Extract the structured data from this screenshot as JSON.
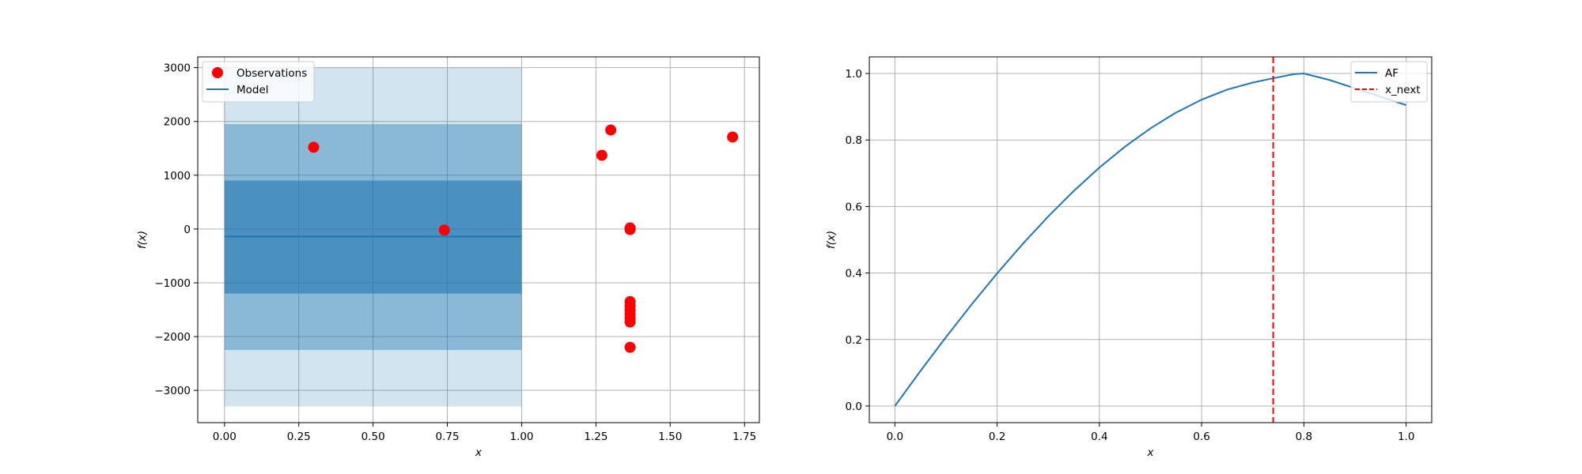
{
  "chart_data": [
    {
      "type": "scatter",
      "xlabel": "x",
      "ylabel": "f(x)",
      "xlim": [
        -0.09,
        1.8
      ],
      "ylim": [
        -3600,
        3200
      ],
      "xticks": [
        0.0,
        0.25,
        0.5,
        0.75,
        1.0,
        1.25,
        1.5,
        1.75
      ],
      "xtick_labels": [
        "0.00",
        "0.25",
        "0.50",
        "0.75",
        "1.00",
        "1.25",
        "1.50",
        "1.75"
      ],
      "yticks": [
        -3000,
        -2000,
        -1000,
        0,
        1000,
        2000,
        3000
      ],
      "ytick_labels": [
        "−3000",
        "−2000",
        "−1000",
        "0",
        "1000",
        "2000",
        "3000"
      ],
      "grid": true,
      "legend": "top-left",
      "bands": [
        {
          "x": [
            0.0,
            1.0
          ],
          "y": [
            -3300,
            3000
          ],
          "color": "#1f77b4",
          "opacity": 0.2
        },
        {
          "x": [
            0.0,
            1.0
          ],
          "y": [
            -2250,
            1950
          ],
          "color": "#1f77b4",
          "opacity": 0.4
        },
        {
          "x": [
            0.0,
            1.0
          ],
          "y": [
            -1200,
            900
          ],
          "color": "#1f77b4",
          "opacity": 0.6
        }
      ],
      "series": [
        {
          "name": "Observations",
          "kind": "scatter",
          "color": "#ff0000",
          "points": [
            [
              0.3,
              1520
            ],
            [
              0.74,
              -20
            ],
            [
              1.27,
              1370
            ],
            [
              1.3,
              1840
            ],
            [
              1.71,
              1710
            ],
            [
              1.365,
              20
            ],
            [
              1.365,
              -10
            ],
            [
              1.365,
              -1350
            ],
            [
              1.365,
              -1430
            ],
            [
              1.365,
              -1510
            ],
            [
              1.365,
              -1590
            ],
            [
              1.365,
              -1660
            ],
            [
              1.365,
              -1730
            ],
            [
              1.365,
              -2200
            ]
          ]
        },
        {
          "name": "Model",
          "kind": "line",
          "color": "#1f77b4",
          "points": [
            [
              0.0,
              -140
            ],
            [
              1.0,
              -140
            ]
          ]
        }
      ]
    },
    {
      "type": "line",
      "xlabel": "x",
      "ylabel": "f(x)",
      "xlim": [
        -0.05,
        1.05
      ],
      "ylim": [
        -0.05,
        1.05
      ],
      "xticks": [
        0.0,
        0.2,
        0.4,
        0.6,
        0.8,
        1.0
      ],
      "xtick_labels": [
        "0.0",
        "0.2",
        "0.4",
        "0.6",
        "0.8",
        "1.0"
      ],
      "yticks": [
        0.0,
        0.2,
        0.4,
        0.6,
        0.8,
        1.0
      ],
      "ytick_labels": [
        "0.0",
        "0.2",
        "0.4",
        "0.6",
        "0.8",
        "1.0"
      ],
      "grid": true,
      "legend": "top-right",
      "series": [
        {
          "name": "AF",
          "kind": "line",
          "color": "#1f77b4",
          "points": [
            [
              0.0,
              0.0
            ],
            [
              0.05,
              0.1053
            ],
            [
              0.1,
              0.2072
            ],
            [
              0.15,
              0.3053
            ],
            [
              0.2,
              0.3988
            ],
            [
              0.25,
              0.4874
            ],
            [
              0.3,
              0.5702
            ],
            [
              0.35,
              0.647
            ],
            [
              0.4,
              0.717
            ],
            [
              0.45,
              0.7799
            ],
            [
              0.5,
              0.8351
            ],
            [
              0.55,
              0.8824
            ],
            [
              0.6,
              0.9213
            ],
            [
              0.65,
              0.9515
            ],
            [
              0.7,
              0.9728
            ],
            [
              0.74,
              0.9857
            ],
            [
              0.78,
              0.9979
            ],
            [
              0.8,
              1.0
            ],
            [
              0.85,
              0.9805
            ],
            [
              0.9,
              0.9555
            ],
            [
              0.95,
              0.93
            ],
            [
              1.0,
              0.905
            ]
          ]
        },
        {
          "name": "x_next",
          "kind": "vline",
          "color": "#ff0000",
          "dash": true,
          "x": 0.74
        }
      ]
    }
  ]
}
